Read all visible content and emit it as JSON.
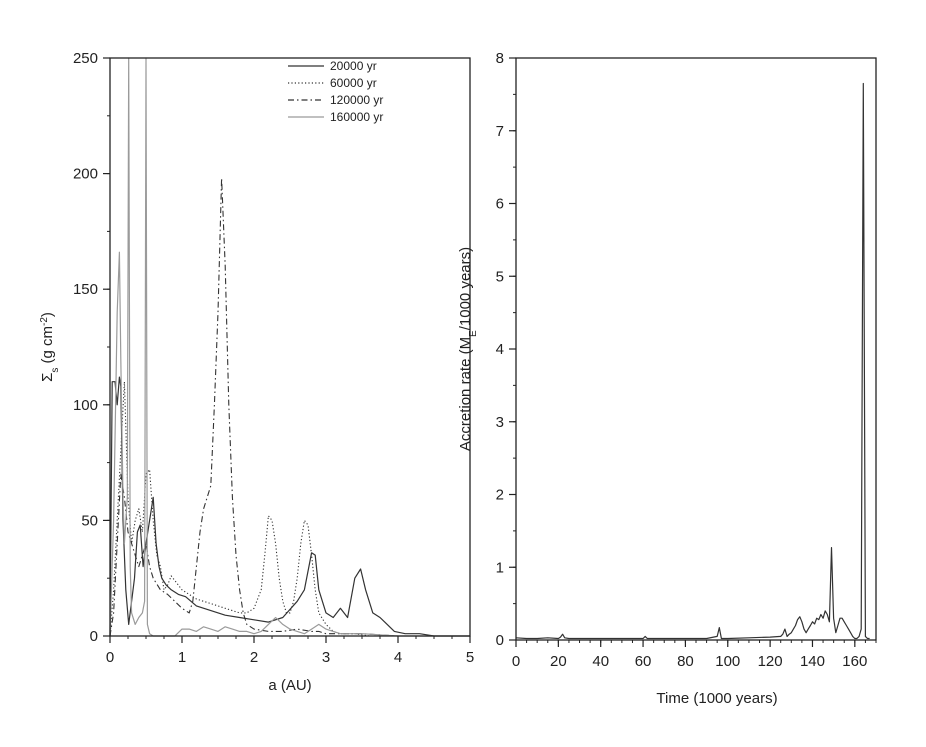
{
  "chart_data": [
    {
      "type": "line",
      "xlabel": "a (AU)",
      "ylabel_main": "Σ",
      "ylabel_sub": "s",
      "ylabel_unit_pre": " (g cm",
      "ylabel_unit_sup": "-2",
      "ylabel_unit_post": ")",
      "xlim": [
        0,
        5
      ],
      "ylim": [
        0,
        250
      ],
      "xticks": [
        0,
        1,
        2,
        3,
        4,
        5
      ],
      "xtick_labels": [
        "0",
        "1",
        "2",
        "3",
        "4",
        "5"
      ],
      "yticks": [
        0,
        50,
        100,
        150,
        200,
        250
      ],
      "ytick_labels": [
        "0",
        "50",
        "100",
        "150",
        "200",
        "250"
      ],
      "grid": false,
      "legend_position": "top-right",
      "series": [
        {
          "name": "20000 yr",
          "color": "#333333",
          "style": "solid",
          "x": [
            0.0,
            0.03,
            0.07,
            0.1,
            0.13,
            0.15,
            0.18,
            0.22,
            0.26,
            0.3,
            0.34,
            0.38,
            0.42,
            0.46,
            0.5,
            0.55,
            0.6,
            0.64,
            0.68,
            0.72,
            0.78,
            0.85,
            0.95,
            1.05,
            1.2,
            1.4,
            1.6,
            1.8,
            2.0,
            2.2,
            2.4,
            2.6,
            2.7,
            2.8,
            2.85,
            2.9,
            3.0,
            3.1,
            3.2,
            3.3,
            3.4,
            3.48,
            3.55,
            3.65,
            3.75,
            3.85,
            3.95,
            4.1,
            4.3,
            4.5,
            4.7,
            5.0
          ],
          "y": [
            0,
            110,
            110,
            100,
            112,
            108,
            50,
            20,
            5,
            15,
            25,
            45,
            48,
            30,
            40,
            50,
            60,
            40,
            30,
            25,
            22,
            20,
            18,
            17,
            13,
            11,
            9,
            8,
            7,
            6,
            8,
            15,
            20,
            36,
            35,
            20,
            10,
            8,
            12,
            8,
            25,
            29,
            20,
            10,
            8,
            5,
            2,
            1,
            1,
            0,
            0,
            0
          ]
        },
        {
          "name": "60000 yr",
          "color": "#333333",
          "style": "dotted",
          "x": [
            0.0,
            0.05,
            0.1,
            0.15,
            0.2,
            0.25,
            0.3,
            0.35,
            0.4,
            0.45,
            0.5,
            0.55,
            0.6,
            0.65,
            0.7,
            0.75,
            0.8,
            0.85,
            0.9,
            1.0,
            1.1,
            1.2,
            1.3,
            1.4,
            1.5,
            1.6,
            1.7,
            1.8,
            1.9,
            2.0,
            2.1,
            2.15,
            2.2,
            2.25,
            2.3,
            2.35,
            2.4,
            2.45,
            2.5,
            2.55,
            2.6,
            2.65,
            2.7,
            2.75,
            2.8,
            2.85,
            2.9,
            3.0,
            3.1,
            3.2,
            3.4,
            3.6,
            4.0,
            4.5,
            5.0
          ],
          "y": [
            0,
            20,
            50,
            80,
            110,
            60,
            40,
            50,
            55,
            45,
            70,
            72,
            50,
            35,
            30,
            20,
            22,
            26,
            24,
            20,
            18,
            16,
            15,
            14,
            13,
            12,
            11,
            10,
            10,
            12,
            20,
            35,
            52,
            50,
            40,
            25,
            15,
            10,
            10,
            15,
            25,
            40,
            50,
            48,
            35,
            20,
            10,
            5,
            2,
            1,
            1,
            0,
            0,
            0,
            0
          ]
        },
        {
          "name": "120000 yr",
          "color": "#333333",
          "style": "dashdot",
          "x": [
            0.0,
            0.05,
            0.1,
            0.15,
            0.2,
            0.25,
            0.3,
            0.35,
            0.4,
            0.45,
            0.5,
            0.55,
            0.6,
            0.7,
            0.8,
            0.9,
            1.0,
            1.1,
            1.15,
            1.2,
            1.25,
            1.3,
            1.35,
            1.4,
            1.45,
            1.5,
            1.55,
            1.6,
            1.65,
            1.7,
            1.75,
            1.8,
            1.85,
            1.9,
            2.0,
            2.2,
            2.4,
            2.6,
            2.8,
            2.9,
            3.0,
            3.2,
            3.5,
            4.0,
            4.5,
            5.0
          ],
          "y": [
            0,
            10,
            40,
            70,
            60,
            45,
            40,
            35,
            30,
            35,
            40,
            30,
            25,
            20,
            18,
            15,
            12,
            10,
            15,
            30,
            45,
            55,
            60,
            65,
            100,
            140,
            198,
            160,
            100,
            60,
            35,
            20,
            10,
            5,
            3,
            2,
            2,
            3,
            2,
            2,
            1,
            1,
            1,
            0,
            0,
            0
          ]
        },
        {
          "name": "160000 yr",
          "color": "#9a9a9a",
          "style": "solid",
          "x": [
            0.0,
            0.05,
            0.1,
            0.13,
            0.15,
            0.18,
            0.2,
            0.24,
            0.26,
            0.28,
            0.3,
            0.35,
            0.4,
            0.45,
            0.48,
            0.5,
            0.52,
            0.55,
            0.6,
            0.7,
            0.8,
            0.9,
            1.0,
            1.1,
            1.2,
            1.3,
            1.4,
            1.5,
            1.6,
            1.7,
            1.8,
            1.9,
            2.0,
            2.1,
            2.2,
            2.3,
            2.4,
            2.5,
            2.6,
            2.7,
            2.8,
            2.9,
            3.0,
            3.1,
            3.2,
            3.5,
            4.0,
            4.5,
            5.0
          ],
          "y": [
            0,
            50,
            140,
            166,
            120,
            60,
            40,
            60,
            250,
            30,
            10,
            5,
            8,
            10,
            15,
            250,
            5,
            1,
            0,
            0,
            0,
            0,
            3,
            3,
            2,
            4,
            3,
            2,
            4,
            3,
            2,
            2,
            1,
            2,
            5,
            8,
            5,
            3,
            2,
            1,
            3,
            5,
            3,
            2,
            1,
            1,
            0,
            0,
            0
          ]
        }
      ]
    },
    {
      "type": "line",
      "xlabel": "Time (1000 years)",
      "ylabel_pre": "Accretion rate (M",
      "ylabel_sub": "E",
      "ylabel_post": "/1000 years)",
      "xlim": [
        0,
        170
      ],
      "ylim": [
        0,
        8
      ],
      "xticks": [
        0,
        20,
        40,
        60,
        80,
        100,
        120,
        140,
        160
      ],
      "xtick_labels": [
        "0",
        "20",
        "40",
        "60",
        "80",
        "100",
        "120",
        "140",
        "160"
      ],
      "yticks": [
        0,
        1,
        2,
        3,
        4,
        5,
        6,
        7,
        8
      ],
      "ytick_labels": [
        "0",
        "1",
        "2",
        "3",
        "4",
        "5",
        "6",
        "7",
        "8"
      ],
      "grid": false,
      "series": [
        {
          "color": "#333333",
          "style": "solid",
          "x": [
            0,
            5,
            10,
            15,
            20,
            21,
            22,
            23,
            25,
            30,
            40,
            50,
            60,
            61,
            62,
            65,
            70,
            80,
            90,
            95,
            96,
            97,
            100,
            110,
            120,
            125,
            126,
            127,
            128,
            129,
            130,
            131,
            132,
            133,
            134,
            135,
            136,
            137,
            138,
            139,
            140,
            141,
            142,
            143,
            144,
            145,
            146,
            147,
            148,
            149,
            150,
            151,
            152,
            153,
            154,
            155,
            156,
            157,
            158,
            159,
            160,
            161,
            162,
            163,
            164,
            165,
            166,
            167
          ],
          "y": [
            0.03,
            0.02,
            0.02,
            0.03,
            0.02,
            0.04,
            0.08,
            0.03,
            0.02,
            0.02,
            0.02,
            0.02,
            0.02,
            0.05,
            0.02,
            0.02,
            0.02,
            0.02,
            0.02,
            0.05,
            0.17,
            0.02,
            0.02,
            0.03,
            0.04,
            0.05,
            0.08,
            0.15,
            0.05,
            0.08,
            0.1,
            0.15,
            0.2,
            0.28,
            0.32,
            0.25,
            0.15,
            0.1,
            0.15,
            0.2,
            0.25,
            0.22,
            0.3,
            0.28,
            0.35,
            0.3,
            0.4,
            0.35,
            0.25,
            1.27,
            0.3,
            0.1,
            0.2,
            0.3,
            0.3,
            0.25,
            0.2,
            0.15,
            0.1,
            0.05,
            0.02,
            0.02,
            0.05,
            0.15,
            7.65,
            0.05,
            0.02,
            0.02
          ]
        }
      ]
    }
  ]
}
